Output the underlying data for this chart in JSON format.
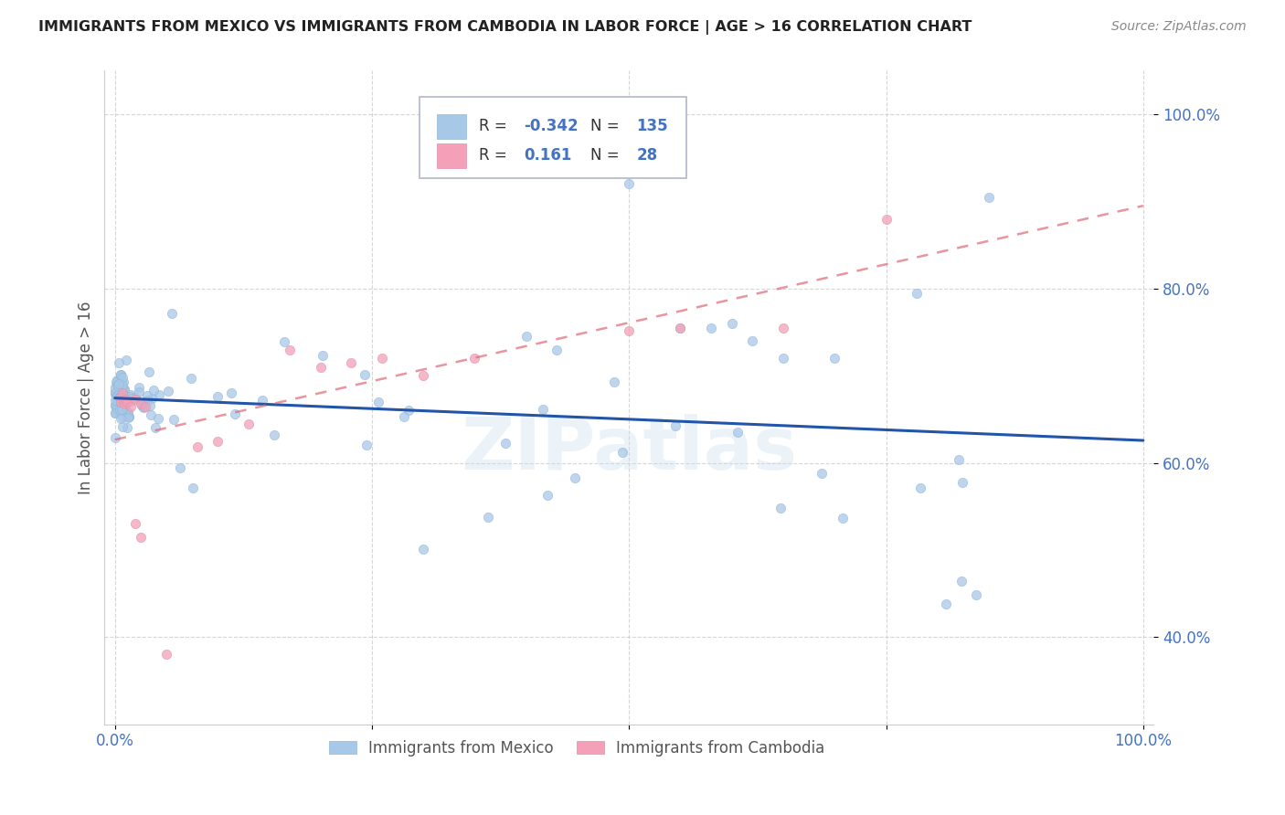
{
  "title": "IMMIGRANTS FROM MEXICO VS IMMIGRANTS FROM CAMBODIA IN LABOR FORCE | AGE > 16 CORRELATION CHART",
  "source": "Source: ZipAtlas.com",
  "ylabel": "In Labor Force | Age > 16",
  "mexico_R": -0.342,
  "mexico_N": 135,
  "cambodia_R": 0.161,
  "cambodia_N": 28,
  "mexico_color": "#a8c8e8",
  "cambodia_color": "#f4a0b8",
  "mexico_line_color": "#2255aa",
  "cambodia_line_color": "#e06878",
  "background_color": "#ffffff",
  "watermark": "ZIPatlas",
  "xlim": [
    0.0,
    1.0
  ],
  "ylim": [
    0.3,
    1.05
  ],
  "y_ticks": [
    0.4,
    0.6,
    0.8,
    1.0
  ],
  "y_tick_labels": [
    "40.0%",
    "60.0%",
    "80.0%",
    "100.0%"
  ]
}
